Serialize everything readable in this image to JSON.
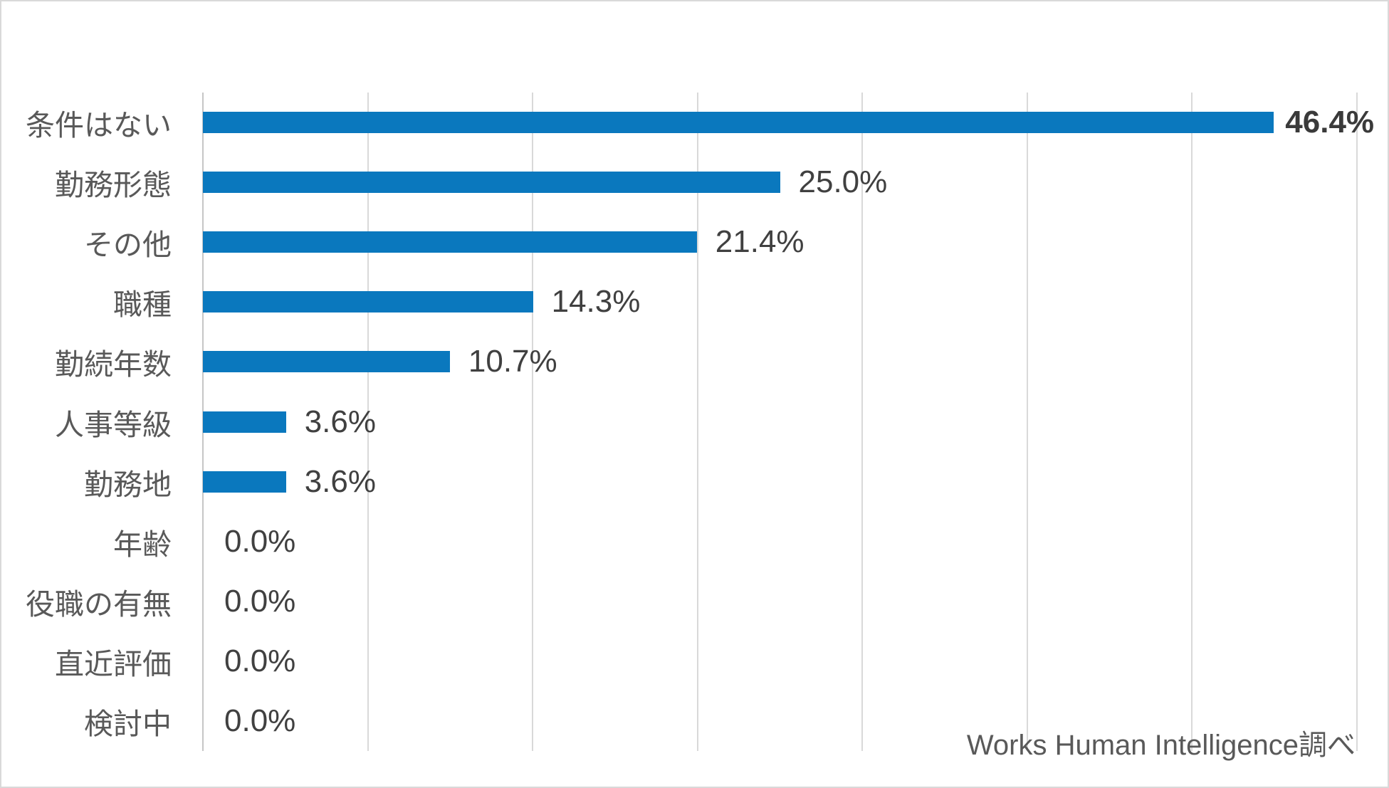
{
  "chart_data": {
    "type": "bar",
    "orientation": "horizontal",
    "title": "",
    "xlabel": "",
    "ylabel": "",
    "xlim": [
      0,
      50
    ],
    "gridline_divisions": 7,
    "grid": true,
    "legend": "none",
    "bar_color": "#0a78be",
    "gridline_color": "#d9d9d9",
    "axis_line_color": "#c6c6c6",
    "categories": [
      "条件はない",
      "勤務形態",
      "その他",
      "職種",
      "勤続年数",
      "人事等級",
      "勤務地",
      "年齢",
      "役職の有無",
      "直近評価",
      "検討中"
    ],
    "values": [
      46.4,
      25.0,
      21.4,
      14.3,
      10.7,
      3.6,
      3.6,
      0.0,
      0.0,
      0.0,
      0.0
    ],
    "value_labels": [
      "46.4%",
      "25.0%",
      "21.4%",
      "14.3%",
      "10.7%",
      "3.6%",
      "3.6%",
      "0.0%",
      "0.0%",
      "0.0%",
      "0.0%"
    ],
    "emphasized_index": 0,
    "source_note": "Works Human Intelligence調べ"
  }
}
